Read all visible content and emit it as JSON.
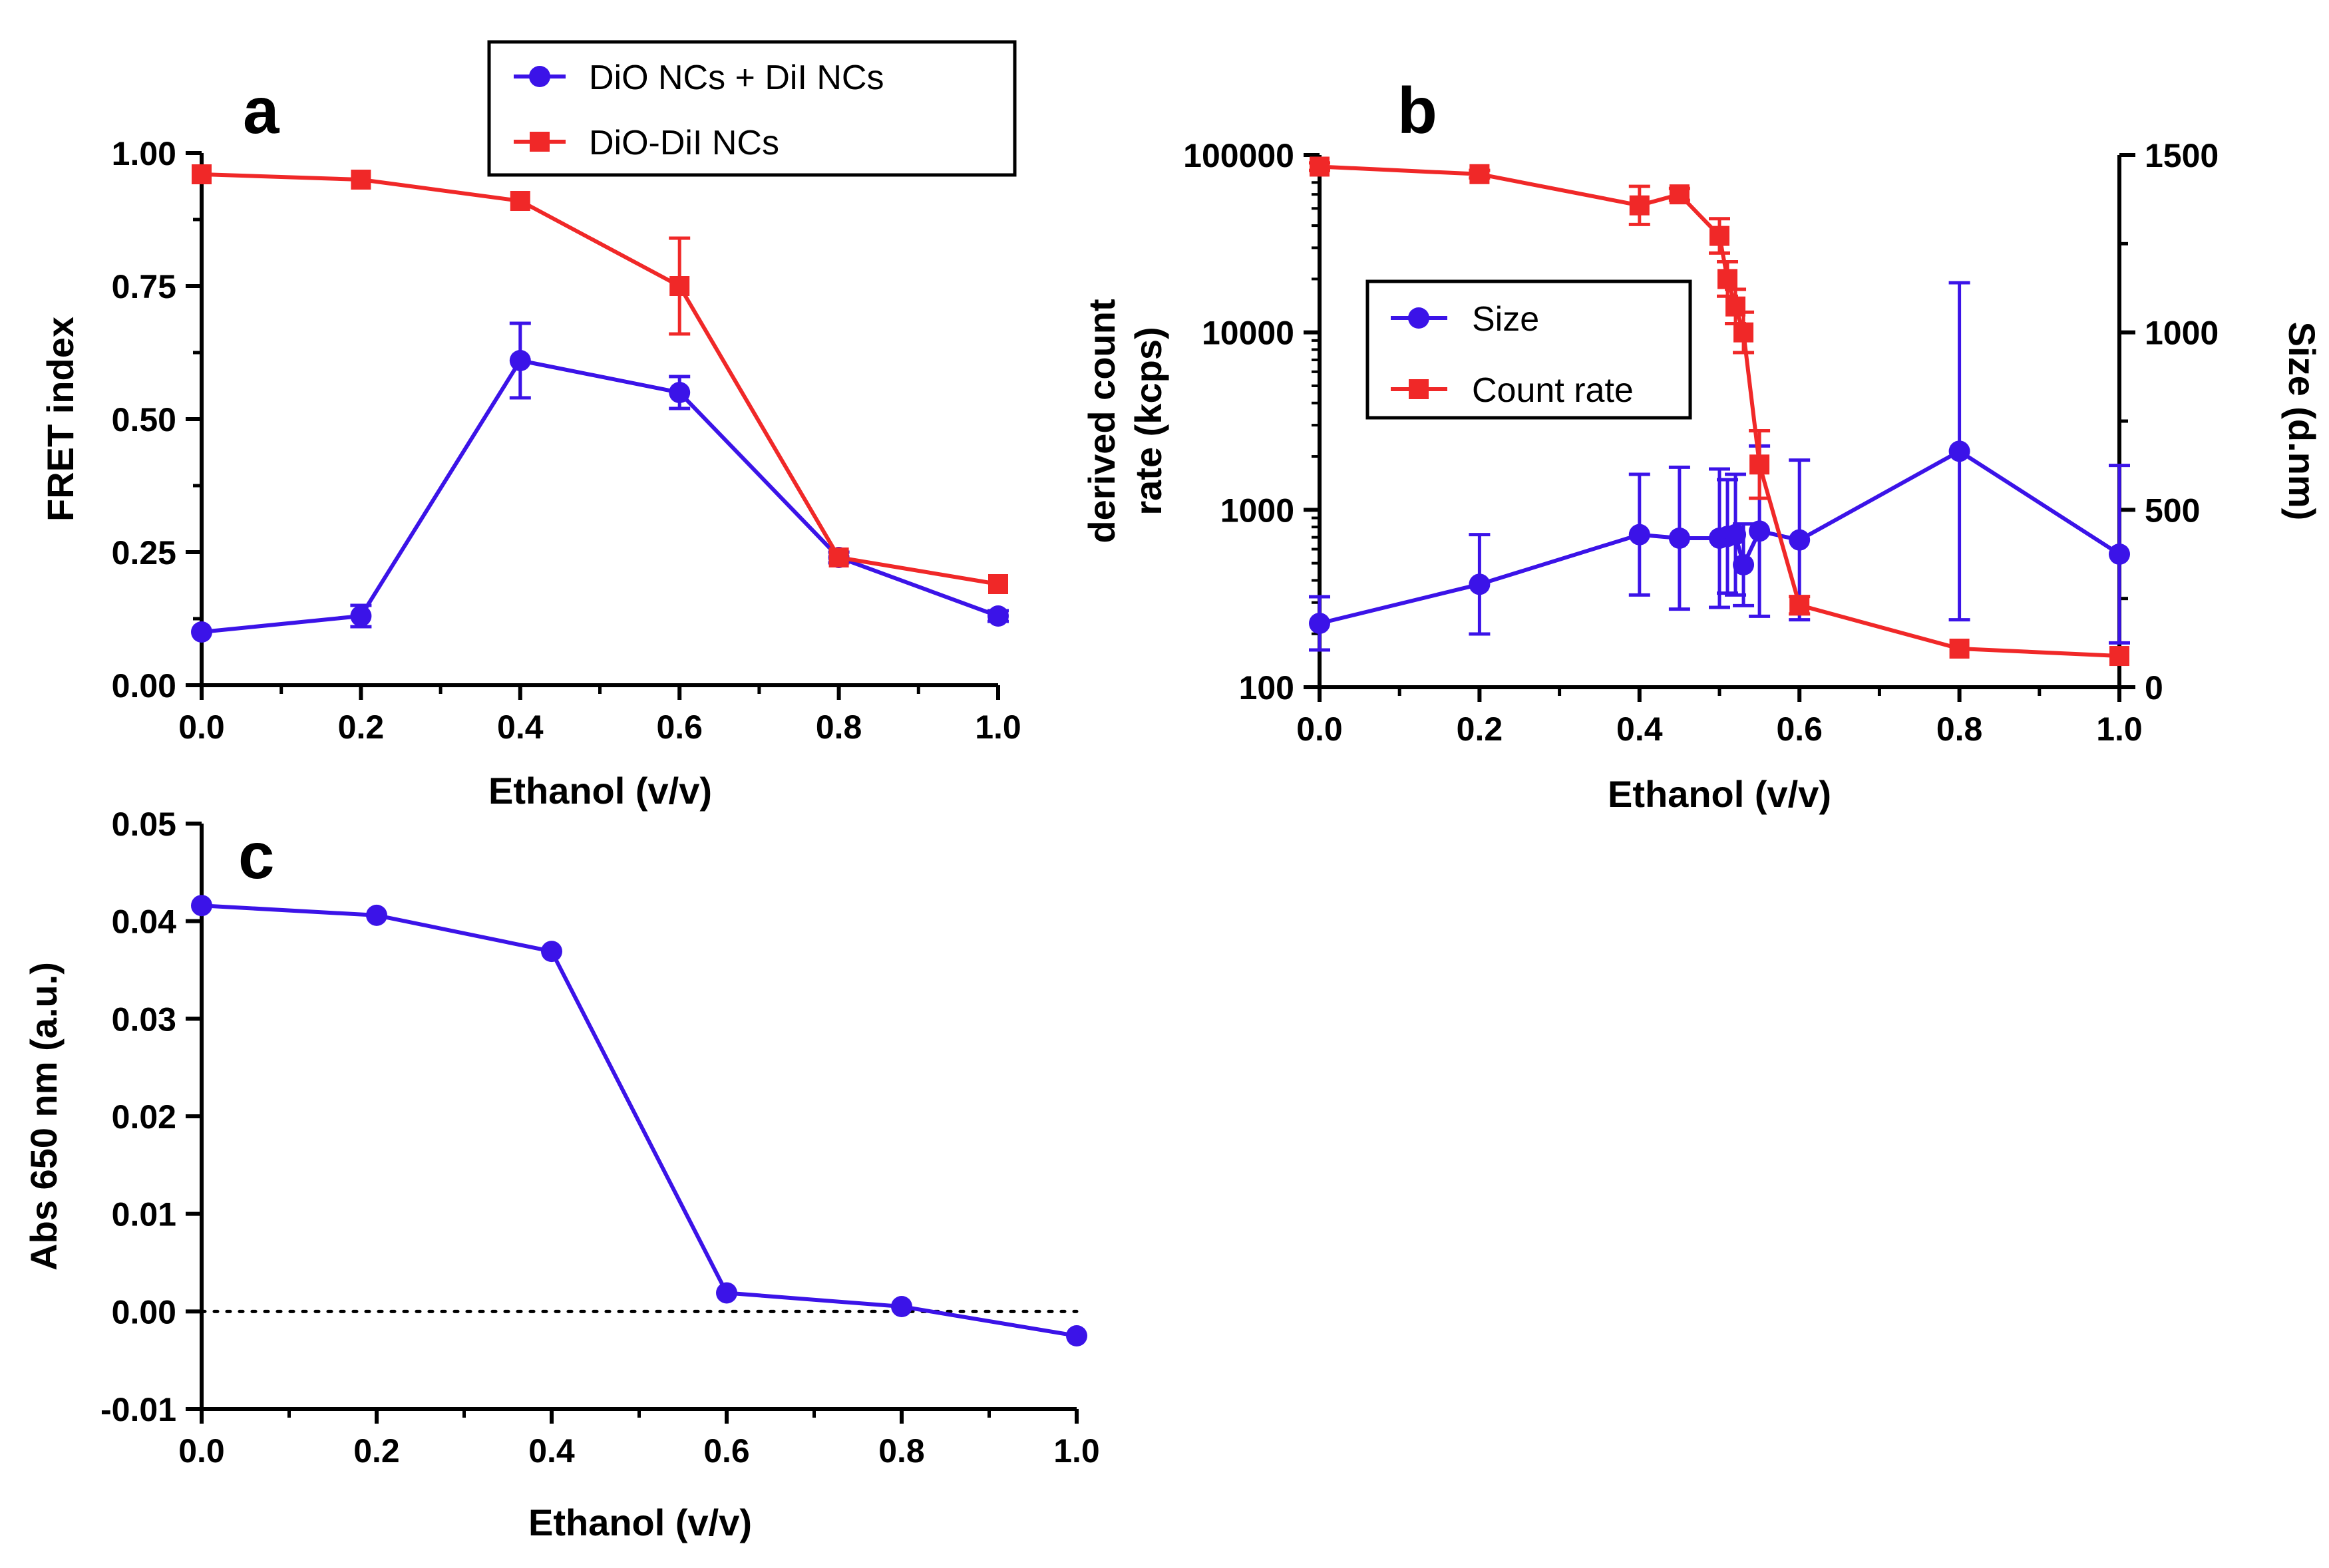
{
  "chart_data": [
    {
      "panel": "a",
      "type": "line",
      "xlabel": "Ethanol (v/v)",
      "ylabel": "FRET index",
      "xlim": [
        0,
        1
      ],
      "ylim": [
        0,
        1
      ],
      "xticks": [
        "0.0",
        "0.2",
        "0.4",
        "0.6",
        "0.8",
        "1.0"
      ],
      "yticks": [
        "0.00",
        "0.25",
        "0.50",
        "0.75",
        "1.00"
      ],
      "legend_position": "top-right",
      "series": [
        {
          "name": "DiO NCs + DiI NCs",
          "color": "#3B13E8",
          "marker": "circle",
          "x": [
            0.0,
            0.2,
            0.4,
            0.6,
            0.8,
            1.0
          ],
          "y": [
            0.1,
            0.13,
            0.61,
            0.55,
            0.24,
            0.13
          ],
          "err": [
            0.0,
            0.02,
            0.07,
            0.03,
            0.01,
            0.01
          ]
        },
        {
          "name": "DiO-DiI NCs",
          "color": "#F02828",
          "marker": "square",
          "x": [
            0.0,
            0.2,
            0.4,
            0.6,
            0.8,
            1.0
          ],
          "y": [
            0.96,
            0.95,
            0.91,
            0.75,
            0.24,
            0.19
          ],
          "err": [
            0.0,
            0.0,
            0.0,
            0.09,
            0.0,
            0.0
          ]
        }
      ]
    },
    {
      "panel": "b",
      "type": "line",
      "xlabel": "Ethanol (v/v)",
      "ylabel_left": "derived count rate (kcps)",
      "ylabel_left_lines": [
        "derived count",
        "rate (kcps)"
      ],
      "ylabel_right": "Size (d.nm)",
      "xlim": [
        0,
        1
      ],
      "ylim_left": [
        100,
        100000
      ],
      "yscale_left": "log",
      "ylim_right": [
        0,
        1500
      ],
      "xticks": [
        "0.0",
        "0.2",
        "0.4",
        "0.6",
        "0.8",
        "1.0"
      ],
      "yticks_left": [
        "100",
        "1000",
        "10000",
        "100000"
      ],
      "yticks_right": [
        "0",
        "500",
        "1000",
        "1500"
      ],
      "legend_position": "center-left",
      "series": [
        {
          "name": "Size",
          "axis": "right",
          "color": "#3B13E8",
          "marker": "circle",
          "x": [
            0.0,
            0.2,
            0.4,
            0.45,
            0.5,
            0.51,
            0.52,
            0.53,
            0.55,
            0.6,
            0.8,
            1.0
          ],
          "y": [
            180,
            290,
            430,
            420,
            420,
            425,
            430,
            345,
            440,
            415,
            665,
            375
          ],
          "err": [
            75,
            140,
            170,
            200,
            195,
            160,
            170,
            115,
            240,
            225,
            475,
            250
          ]
        },
        {
          "name": "Count rate",
          "axis": "left",
          "color": "#F02828",
          "marker": "square",
          "x": [
            0.0,
            0.2,
            0.4,
            0.45,
            0.5,
            0.51,
            0.52,
            0.53,
            0.55,
            0.6,
            0.8,
            1.0
          ],
          "y": [
            86000,
            78000,
            52000,
            60000,
            35000,
            20000,
            14000,
            10000,
            1800,
            290,
            165,
            150
          ],
          "err_factor": [
            1.05,
            1.05,
            1.28,
            1.08,
            1.25,
            1.25,
            1.25,
            1.3,
            1.55,
            1.12,
            1.03,
            1.03
          ]
        }
      ]
    },
    {
      "panel": "c",
      "type": "line",
      "xlabel": "Ethanol (v/v)",
      "ylabel": "Abs 650 nm (a.u.)",
      "xlim": [
        0,
        1
      ],
      "ylim": [
        -0.01,
        0.05
      ],
      "xticks": [
        "0.0",
        "0.2",
        "0.4",
        "0.6",
        "0.8",
        "1.0"
      ],
      "yticks": [
        "-0.01",
        "0.00",
        "0.01",
        "0.02",
        "0.03",
        "0.04",
        "0.05"
      ],
      "reference_line": 0,
      "series": [
        {
          "name": "Abs 650 nm",
          "color": "#3B13E8",
          "marker": "circle",
          "x": [
            0.0,
            0.2,
            0.4,
            0.6,
            0.8,
            1.0
          ],
          "y": [
            0.0416,
            0.0406,
            0.0369,
            0.0019,
            0.0005,
            -0.0025
          ]
        }
      ]
    }
  ]
}
